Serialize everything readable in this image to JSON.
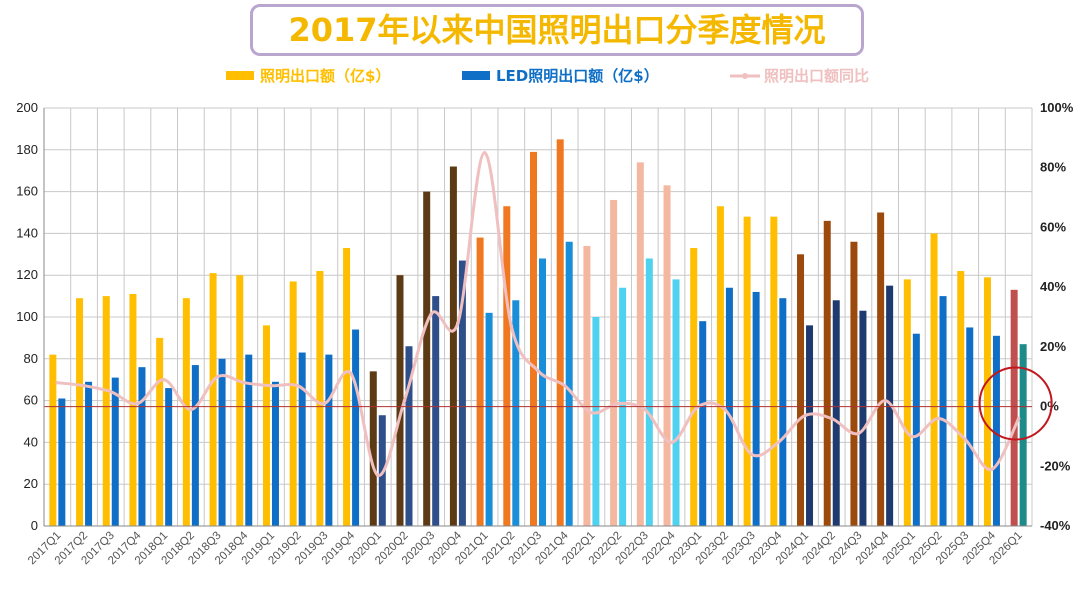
{
  "chart_data": {
    "type": "bar",
    "title": "2017年以来中国照明出口分季度情况",
    "categories": [
      "2017Q1",
      "2017Q2",
      "2017Q3",
      "2017Q4",
      "2018Q1",
      "2018Q2",
      "2018Q3",
      "2018Q4",
      "2019Q1",
      "2019Q2",
      "2019Q3",
      "2019Q4",
      "2020Q1",
      "2020Q2",
      "2020Q3",
      "2020Q4",
      "2021Q1",
      "2021Q2",
      "2021Q3",
      "2021Q4",
      "2022Q1",
      "2022Q2",
      "2022Q3",
      "2022Q4",
      "2023Q1",
      "2023Q2",
      "2023Q3",
      "2023Q4",
      "2024Q1",
      "2024Q2",
      "2024Q3",
      "2024Q4",
      "2025Q1",
      "2025Q2",
      "2025Q3",
      "2025Q4",
      "2026Q1"
    ],
    "series": [
      {
        "name": "照明出口额（亿$）",
        "axis": "left",
        "values": [
          82,
          109,
          110,
          111,
          90,
          109,
          121,
          120,
          96,
          117,
          122,
          133,
          74,
          120,
          160,
          172,
          138,
          153,
          179,
          185,
          134,
          156,
          174,
          163,
          133,
          153,
          148,
          148,
          130,
          146,
          136,
          150,
          118,
          140,
          122,
          119,
          113
        ]
      },
      {
        "name": "LED照明出口额（亿$）",
        "axis": "left",
        "values": [
          61,
          69,
          71,
          76,
          66,
          77,
          80,
          82,
          69,
          83,
          82,
          94,
          53,
          86,
          110,
          127,
          102,
          108,
          128,
          136,
          100,
          114,
          128,
          118,
          98,
          114,
          112,
          109,
          96,
          108,
          103,
          115,
          92,
          110,
          95,
          91,
          87
        ]
      },
      {
        "name": "照明出口额同比",
        "axis": "right",
        "type": "line",
        "values": [
          8,
          7,
          5,
          1,
          9,
          -1,
          10,
          8,
          7,
          7,
          1,
          11,
          -23,
          2,
          31,
          28,
          85,
          27,
          12,
          7,
          -2,
          1,
          -1,
          -12,
          0,
          -1,
          -16,
          -12,
          -3,
          -4,
          -9,
          2,
          -10,
          -4,
          -11,
          -21,
          -4
        ]
      }
    ],
    "bar_colors_left": [
      "#ffbf00",
      "#ffbf00",
      "#ffbf00",
      "#ffbf00",
      "#ffbf00",
      "#ffbf00",
      "#ffbf00",
      "#ffbf00",
      "#ffbf00",
      "#ffbf00",
      "#ffbf00",
      "#ffbf00",
      "#5c3a14",
      "#5c3a14",
      "#5c3a14",
      "#5c3a14",
      "#f07820",
      "#f07820",
      "#f07820",
      "#f07820",
      "#f4b8a0",
      "#f4b8a0",
      "#f4b8a0",
      "#f4b8a0",
      "#ffbf00",
      "#ffbf00",
      "#ffbf00",
      "#ffbf00",
      "#9c4a0c",
      "#9c4a0c",
      "#9c4a0c",
      "#9c4a0c",
      "#ffbf00",
      "#ffbf00",
      "#ffbf00",
      "#ffbf00",
      "#c0504d"
    ],
    "bar_colors_right": [
      "#0f6fc6",
      "#0f6fc6",
      "#0f6fc6",
      "#0f6fc6",
      "#0f6fc6",
      "#0f6fc6",
      "#0f6fc6",
      "#0f6fc6",
      "#0f6fc6",
      "#0f6fc6",
      "#0f6fc6",
      "#0f6fc6",
      "#2e4f8a",
      "#2e4f8a",
      "#2e4f8a",
      "#2e4f8a",
      "#1a8fd9",
      "#1a8fd9",
      "#1a8fd9",
      "#1a8fd9",
      "#4fd2f0",
      "#4fd2f0",
      "#4fd2f0",
      "#4fd2f0",
      "#0f6fc6",
      "#0f6fc6",
      "#0f6fc6",
      "#0f6fc6",
      "#1f3a6e",
      "#1f3a6e",
      "#1f3a6e",
      "#1f3a6e",
      "#0f6fc6",
      "#0f6fc6",
      "#0f6fc6",
      "#0f6fc6",
      "#1f8a8a"
    ],
    "line_color": "#f0c0c0",
    "ylim": [
      0,
      200
    ],
    "yticks": [
      "0",
      "20",
      "40",
      "60",
      "80",
      "100",
      "120",
      "140",
      "160",
      "180",
      "200"
    ],
    "y2lim": [
      -40,
      100
    ],
    "y2ticks": [
      "-40%",
      "-20%",
      "0%",
      "20%",
      "40%",
      "60%",
      "80%",
      "100%"
    ],
    "grid": true,
    "legend_position": "top",
    "colors": {
      "title": "#f5b800",
      "title_border": "#b9a6cf",
      "highlight_circle": "#c0181e"
    }
  }
}
